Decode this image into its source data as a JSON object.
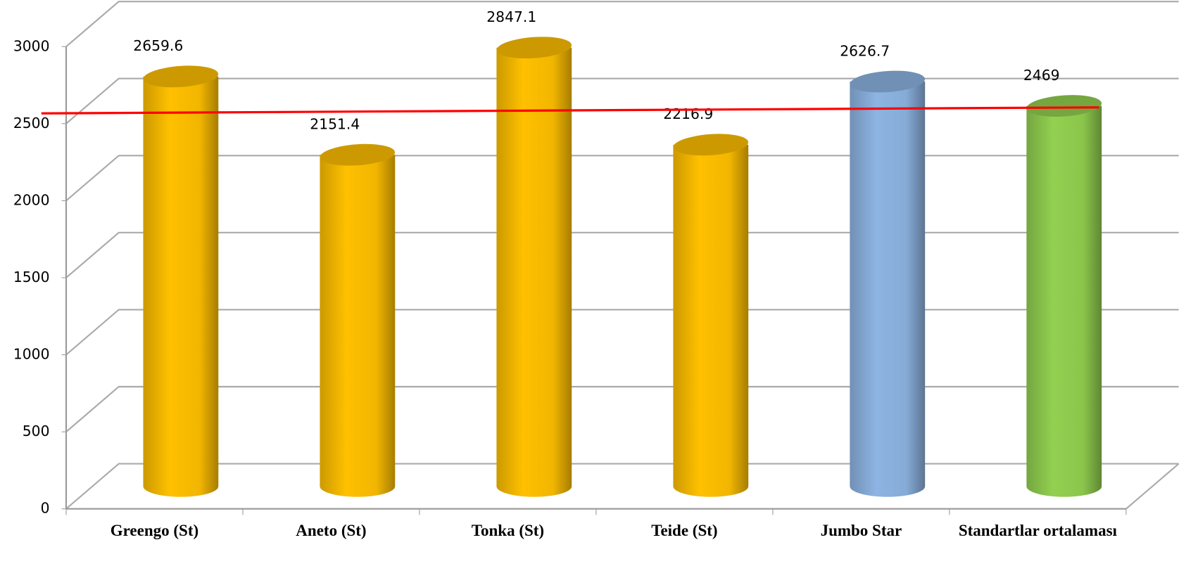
{
  "chart_data": {
    "type": "bar",
    "categories": [
      "Greengo (St)",
      "Aneto (St)",
      "Tonka (St)",
      "Teide (St)",
      "Jumbo Star",
      "Standartlar ortalaması"
    ],
    "values": [
      2659.6,
      2151.4,
      2847.1,
      2216.9,
      2626.7,
      2469
    ],
    "colors": [
      "#ffc000",
      "#ffc000",
      "#ffc000",
      "#ffc000",
      "#8db4e2",
      "#92d050"
    ],
    "ylim": [
      0,
      3000
    ],
    "yticks": [
      0,
      500,
      1000,
      1500,
      2000,
      2500,
      3000
    ],
    "grid": true,
    "reference_line_color": "#ff0000"
  }
}
